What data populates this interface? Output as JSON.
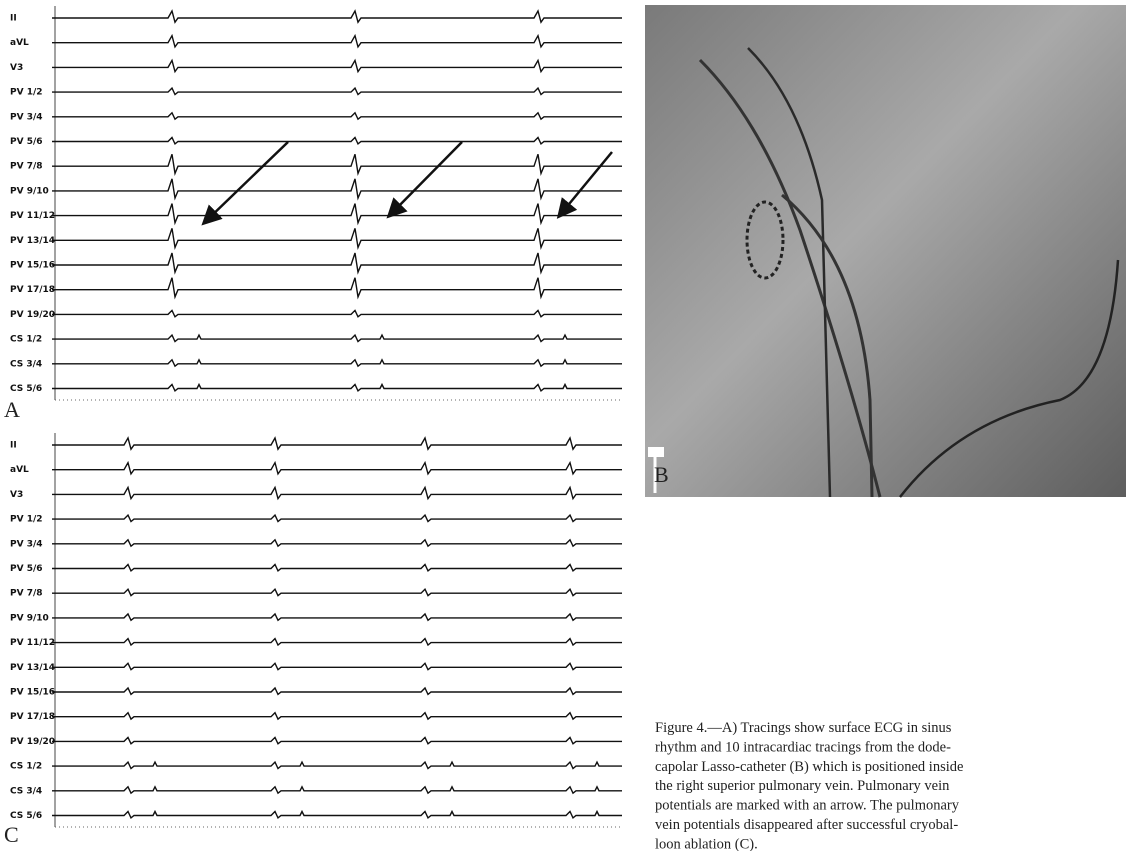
{
  "panels": [
    {
      "letter": "A",
      "leads": [
        "II",
        "aVL",
        "V3",
        "PV 1/2",
        "PV 3/4",
        "PV 5/6",
        "PV 7/8",
        "PV 9/10",
        "PV 11/12",
        "PV 13/14",
        "PV 15/16",
        "PV 17/18",
        "PV 19/20",
        "CS 1/2",
        "CS 3/4",
        "CS 5/6"
      ]
    },
    {
      "letter": "B"
    },
    {
      "letter": "C",
      "leads": [
        "II",
        "aVL",
        "V3",
        "PV 1/2",
        "PV 3/4",
        "PV 5/6",
        "PV 7/8",
        "PV 9/10",
        "PV 11/12",
        "PV 13/14",
        "PV 15/16",
        "PV 17/18",
        "PV 19/20",
        "CS 1/2",
        "CS 3/4",
        "CS 5/6"
      ]
    }
  ],
  "caption": [
    "Figure 4.—A) Tracings show surface ECG in sinus",
    "rhythm and 10 intracardiac tracings from the dode-",
    "capolar Lasso-catheter (B) which is positioned inside",
    "the right superior pulmonary vein. Pulmonary vein",
    "potentials are marked with an arrow. The pulmonary",
    "vein potentials disappeared after successful cryobal-",
    "loon ablation (C)."
  ]
}
